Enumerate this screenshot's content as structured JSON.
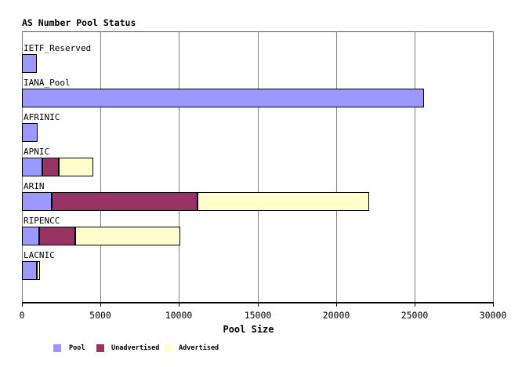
{
  "title": "AS Number Pool Status",
  "x_axis_label": "Pool Size",
  "chart_data": {
    "type": "bar",
    "orientation": "horizontal",
    "stacked": true,
    "title": "AS Number Pool Status",
    "xlabel": "Pool Size",
    "xlim": [
      0,
      30000
    ],
    "grid": "vertical",
    "legend_position": "bottom",
    "x_ticks": [
      0,
      5000,
      10000,
      15000,
      20000,
      25000,
      30000
    ],
    "x_tick_labels": [
      "0",
      "5000",
      "10000",
      "15000",
      "20000",
      "25000",
      "30000"
    ],
    "categories": [
      "IETF_Reserved",
      "IANA_Pool",
      "AFRINIC",
      "APNIC",
      "ARIN",
      "RIPENCC",
      "LACNIC"
    ],
    "series": [
      {
        "name": "Pool",
        "color": "#9999ff",
        "values": [
          950,
          25600,
          1000,
          1300,
          1900,
          1100,
          950
        ]
      },
      {
        "name": "Unadvertised",
        "color": "#993366",
        "values": [
          0,
          0,
          0,
          1050,
          9300,
          2300,
          0
        ]
      },
      {
        "name": "Advertised",
        "color": "#ffffcc",
        "values": [
          0,
          0,
          0,
          2200,
          10900,
          6700,
          200
        ]
      }
    ],
    "totals": [
      950,
      25600,
      1000,
      4550,
      22100,
      10100,
      1150
    ]
  },
  "colors": {
    "pool": "#9999ff",
    "unadvertised": "#993366",
    "advertised": "#ffffcc",
    "grid": "#808080",
    "axis": "#000000",
    "background": "#ffffff"
  }
}
